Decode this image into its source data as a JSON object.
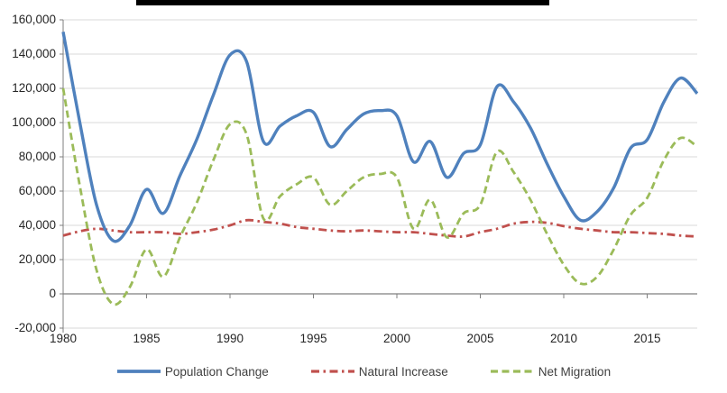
{
  "chart_data": {
    "type": "line",
    "title": "",
    "x_years": [
      1980,
      1981,
      1982,
      1983,
      1984,
      1985,
      1986,
      1987,
      1988,
      1989,
      1990,
      1991,
      1992,
      1993,
      1994,
      1995,
      1996,
      1997,
      1998,
      1999,
      2000,
      2001,
      2002,
      2003,
      2004,
      2005,
      2006,
      2007,
      2008,
      2009,
      2010,
      2011,
      2012,
      2013,
      2014,
      2015,
      2016,
      2017,
      2018
    ],
    "series": [
      {
        "name": "Population Change",
        "color": "#4F81BD",
        "dash": "solid",
        "values": [
          153000,
          100000,
          52000,
          31000,
          40000,
          61000,
          47000,
          69000,
          90000,
          116000,
          139500,
          135500,
          89000,
          98000,
          104000,
          106000,
          86000,
          96000,
          105000,
          107000,
          104000,
          77000,
          89000,
          68000,
          82000,
          87000,
          121000,
          112000,
          97000,
          76000,
          57000,
          43000,
          48000,
          62000,
          85000,
          90000,
          112000,
          126000,
          117000
        ]
      },
      {
        "name": "Natural Increase",
        "color": "#C0504D",
        "dash": "dash-dot",
        "values": [
          34000,
          36500,
          38000,
          37000,
          36000,
          36000,
          36000,
          35000,
          36000,
          37500,
          40000,
          43000,
          42000,
          41000,
          39000,
          38000,
          37000,
          36500,
          37000,
          36500,
          36000,
          36000,
          35000,
          34000,
          33500,
          36000,
          38000,
          41000,
          42000,
          41500,
          39500,
          38000,
          37000,
          36000,
          36000,
          35500,
          35000,
          34000,
          33500
        ]
      },
      {
        "name": "Net Migration",
        "color": "#9BBB59",
        "dash": "dashed",
        "values": [
          120000,
          63000,
          14000,
          -6000,
          4000,
          26000,
          10000,
          33000,
          53000,
          78000,
          99000,
          93000,
          44000,
          57000,
          64000,
          68000,
          52000,
          60000,
          68000,
          70000,
          68000,
          38000,
          55000,
          33000,
          47000,
          52000,
          83000,
          71000,
          55000,
          35000,
          17000,
          6000,
          10000,
          26000,
          46000,
          56000,
          78000,
          91000,
          86000
        ]
      }
    ],
    "ylim": [
      -20000,
      160000
    ],
    "ytick_interval": 20000,
    "y_tick_labels": [
      "160,000",
      "140,000",
      "120,000",
      "100,000",
      "80,000",
      "60,000",
      "40,000",
      "20,000",
      "0",
      "-20,000"
    ],
    "x_tick_years": [
      1980,
      1985,
      1990,
      1995,
      2000,
      2005,
      2010,
      2015
    ],
    "x_tick_labels": [
      "1980",
      "1985",
      "1990",
      "1995",
      "2000",
      "2005",
      "2010",
      "2015"
    ],
    "grid": true,
    "legend_position": "bottom",
    "colors": {
      "gridline": "#d9d9d9",
      "axis": "#7f7f7f",
      "text": "#262626"
    }
  }
}
